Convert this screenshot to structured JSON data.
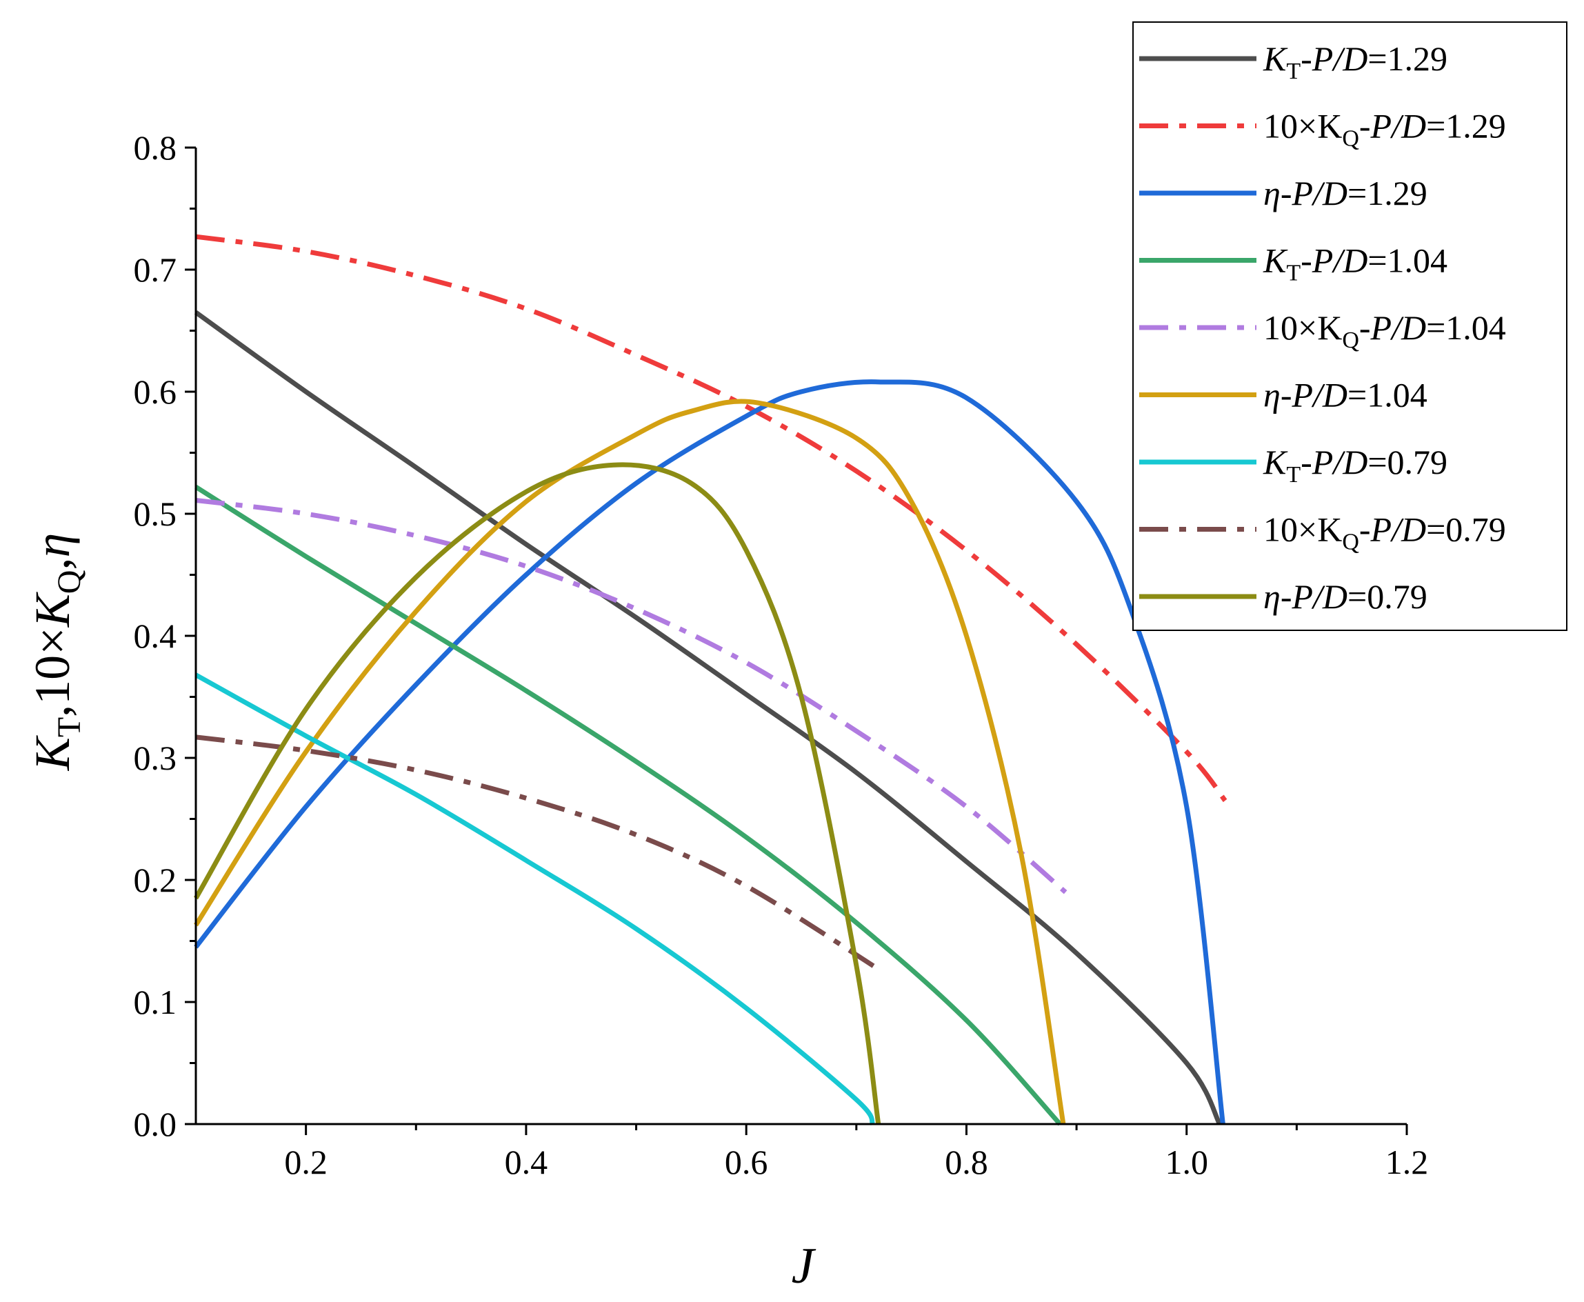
{
  "chart_data": {
    "type": "line",
    "xlabel": "J",
    "ylabel": "K_T,10×K_Q,η",
    "xlim": [
      0.1,
      1.2
    ],
    "ylim": [
      0.0,
      0.8
    ],
    "x_ticks": [
      "0.2",
      "0.4",
      "0.6",
      "0.8",
      "1.0",
      "1.2"
    ],
    "y_ticks": [
      "0.0",
      "0.1",
      "0.2",
      "0.3",
      "0.4",
      "0.5",
      "0.6",
      "0.7",
      "0.8"
    ],
    "grid": false,
    "legend_position": "top-right",
    "series": [
      {
        "name": "K_T-P/D=1.29",
        "legend": {
          "prefix": "K",
          "sub": "T",
          "sub_italic": false,
          "prefix_italic": true,
          "rest": "-P/D=1.29"
        },
        "color": "#4d4d4d",
        "dash": "solid",
        "x": [
          0.1,
          0.2,
          0.3,
          0.4,
          0.5,
          0.6,
          0.7,
          0.8,
          0.9,
          1.0,
          1.03
        ],
        "y": [
          0.665,
          0.6,
          0.538,
          0.475,
          0.415,
          0.352,
          0.288,
          0.215,
          0.14,
          0.05,
          0.0
        ]
      },
      {
        "name": "10×K_Q-P/D=1.29",
        "legend": {
          "prefix": "10×K",
          "sub": "Q",
          "sub_italic": false,
          "prefix_italic": false,
          "rest": "-P/D=1.29"
        },
        "color": "#ef3b3b",
        "dash": "dashdot",
        "x": [
          0.1,
          0.2,
          0.3,
          0.4,
          0.5,
          0.6,
          0.7,
          0.8,
          0.9,
          1.0,
          1.035
        ],
        "y": [
          0.727,
          0.715,
          0.695,
          0.668,
          0.63,
          0.588,
          0.535,
          0.47,
          0.393,
          0.305,
          0.265
        ]
      },
      {
        "name": "η-P/D=1.29",
        "legend": {
          "prefix": "η",
          "sub": "",
          "sub_italic": false,
          "prefix_italic": true,
          "rest": "-P/D=1.29"
        },
        "color": "#1f6ad8",
        "dash": "solid",
        "x": [
          0.1,
          0.2,
          0.3,
          0.4,
          0.5,
          0.6,
          0.65,
          0.72,
          0.8,
          0.9,
          0.95,
          1.0,
          1.033
        ],
        "y": [
          0.145,
          0.26,
          0.36,
          0.45,
          0.525,
          0.58,
          0.6,
          0.608,
          0.595,
          0.51,
          0.42,
          0.26,
          0.0
        ]
      },
      {
        "name": "K_T-P/D=1.04",
        "legend": {
          "prefix": "K",
          "sub": "T",
          "sub_italic": false,
          "prefix_italic": true,
          "rest": "-P/D=1.04"
        },
        "color": "#3aa66a",
        "dash": "solid",
        "x": [
          0.1,
          0.2,
          0.3,
          0.4,
          0.5,
          0.6,
          0.7,
          0.8,
          0.885
        ],
        "y": [
          0.522,
          0.465,
          0.41,
          0.355,
          0.297,
          0.235,
          0.165,
          0.085,
          0.0
        ]
      },
      {
        "name": "10×K_Q-P/D=1.04",
        "legend": {
          "prefix": "10×K",
          "sub": "Q",
          "sub_italic": false,
          "prefix_italic": false,
          "rest": "-P/D=1.04"
        },
        "color": "#b07be0",
        "dash": "dashdot",
        "x": [
          0.1,
          0.2,
          0.3,
          0.4,
          0.5,
          0.6,
          0.7,
          0.8,
          0.89
        ],
        "y": [
          0.511,
          0.5,
          0.482,
          0.457,
          0.422,
          0.378,
          0.322,
          0.26,
          0.19
        ]
      },
      {
        "name": "η-P/D=1.04",
        "legend": {
          "prefix": "η",
          "sub": "",
          "sub_italic": false,
          "prefix_italic": true,
          "rest": "-P/D=1.04"
        },
        "color": "#d3a012",
        "dash": "solid",
        "x": [
          0.1,
          0.2,
          0.3,
          0.4,
          0.5,
          0.55,
          0.61,
          0.7,
          0.75,
          0.8,
          0.85,
          0.888
        ],
        "y": [
          0.163,
          0.305,
          0.42,
          0.51,
          0.565,
          0.584,
          0.591,
          0.562,
          0.51,
          0.4,
          0.22,
          0.0
        ]
      },
      {
        "name": "K_T-P/D=0.79",
        "legend": {
          "prefix": "K",
          "sub": "T",
          "sub_italic": false,
          "prefix_italic": true,
          "rest": "-P/D=0.79"
        },
        "color": "#17c8d2",
        "dash": "solid",
        "x": [
          0.1,
          0.2,
          0.3,
          0.4,
          0.5,
          0.6,
          0.7,
          0.715
        ],
        "y": [
          0.368,
          0.318,
          0.27,
          0.216,
          0.16,
          0.095,
          0.02,
          0.0
        ]
      },
      {
        "name": "10×K_Q-P/D=0.79",
        "legend": {
          "prefix": "10×K",
          "sub": "Q",
          "sub_italic": false,
          "prefix_italic": false,
          "rest": "-P/D=0.79"
        },
        "color": "#7a4b4b",
        "dash": "dashdot",
        "x": [
          0.1,
          0.2,
          0.3,
          0.4,
          0.5,
          0.6,
          0.72
        ],
        "y": [
          0.317,
          0.306,
          0.29,
          0.267,
          0.237,
          0.195,
          0.127
        ]
      },
      {
        "name": "η-P/D=0.79",
        "legend": {
          "prefix": "η",
          "sub": "",
          "sub_italic": false,
          "prefix_italic": true,
          "rest": "-P/D=0.79"
        },
        "color": "#8c8c14",
        "dash": "solid",
        "x": [
          0.1,
          0.2,
          0.3,
          0.4,
          0.48,
          0.55,
          0.6,
          0.65,
          0.7,
          0.72
        ],
        "y": [
          0.185,
          0.34,
          0.448,
          0.518,
          0.54,
          0.525,
          0.47,
          0.35,
          0.13,
          0.0
        ]
      }
    ]
  }
}
